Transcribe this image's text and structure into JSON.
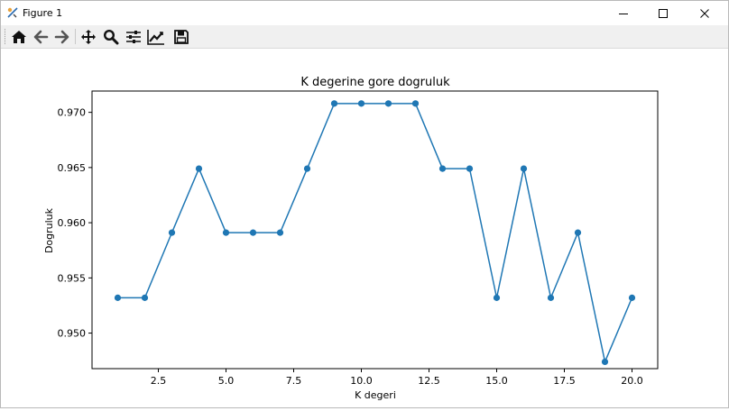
{
  "window": {
    "title": "Figure 1",
    "controls": [
      "minimize-icon",
      "maximize-icon",
      "close-icon"
    ]
  },
  "toolbar": {
    "buttons": [
      "home-icon",
      "back-arrow-icon",
      "forward-arrow-icon",
      "pan-icon",
      "zoom-icon",
      "subplots-config-icon",
      "edit-axis-icon",
      "save-icon"
    ]
  },
  "chart_data": {
    "type": "line",
    "title": "K degerine gore dogruluk",
    "xlabel": "K degeri",
    "ylabel": "Dogruluk",
    "x": [
      1,
      2,
      3,
      4,
      5,
      6,
      7,
      8,
      9,
      10,
      11,
      12,
      13,
      14,
      15,
      16,
      17,
      18,
      19,
      20
    ],
    "series": [
      {
        "values": [
          0.9532,
          0.9532,
          0.9591,
          0.9649,
          0.9591,
          0.9591,
          0.9591,
          0.9649,
          0.9708,
          0.9708,
          0.9708,
          0.9708,
          0.9649,
          0.9649,
          0.9532,
          0.9649,
          0.9532,
          0.9591,
          0.9474,
          0.9532
        ],
        "color": "#1f77b4",
        "marker": "circle"
      }
    ],
    "xticks": [
      2.5,
      5.0,
      7.5,
      10.0,
      12.5,
      15.0,
      17.5,
      20.0
    ],
    "xtick_labels": [
      "2.5",
      "5.0",
      "7.5",
      "10.0",
      "12.5",
      "15.0",
      "17.5",
      "20.0"
    ],
    "yticks": [
      0.95,
      0.955,
      0.96,
      0.965,
      0.97
    ],
    "ytick_labels": [
      "0.950",
      "0.955",
      "0.960",
      "0.965",
      "0.970"
    ],
    "xlim": [
      0.05,
      20.95
    ],
    "ylim": [
      0.94678,
      0.97193
    ],
    "grid": false,
    "legend": "none"
  }
}
